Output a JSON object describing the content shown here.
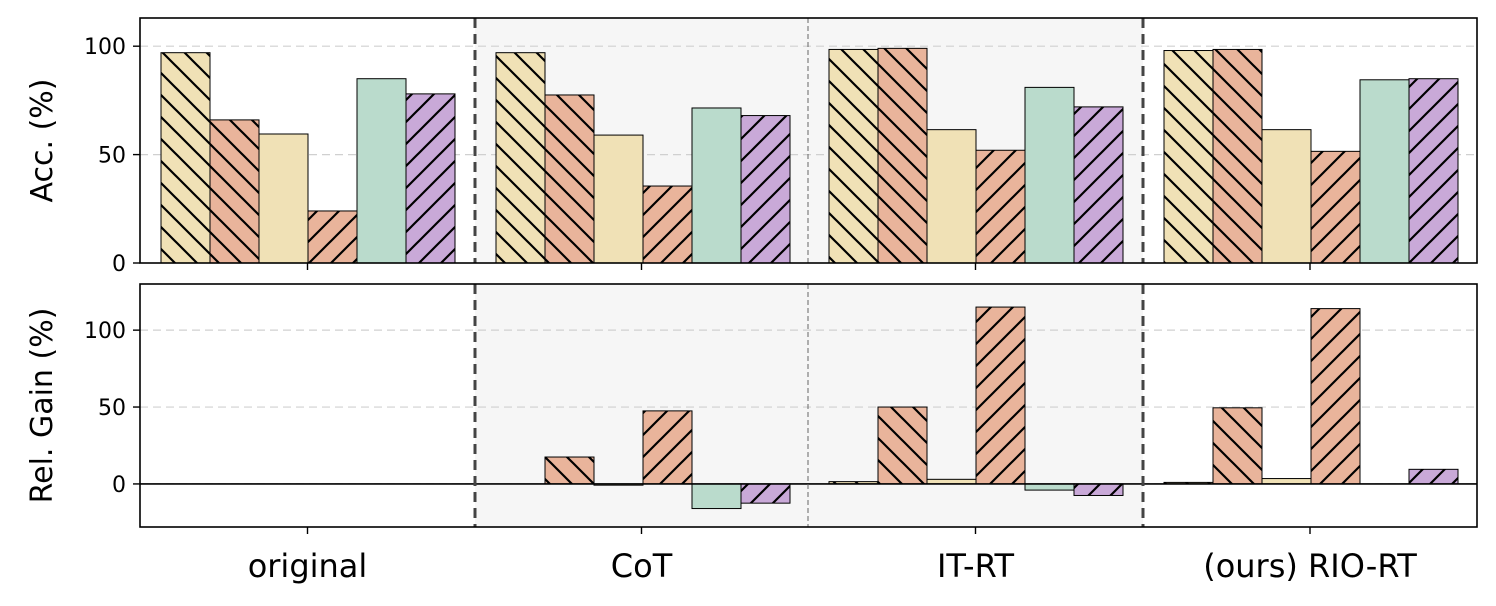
{
  "chart_data": {
    "type": "bar",
    "categories": [
      "original",
      "CoT",
      "IT-RT",
      "(ours) RIO-RT"
    ],
    "bar_styles": [
      {
        "color": "#f0e1b6",
        "hatch": "backslash"
      },
      {
        "color": "#e9b49b",
        "hatch": "backslash"
      },
      {
        "color": "#f0e1b6",
        "hatch": "none"
      },
      {
        "color": "#e9b49b",
        "hatch": "slash"
      },
      {
        "color": "#badbcc",
        "hatch": "none"
      },
      {
        "color": "#c9a9d8",
        "hatch": "slash"
      }
    ],
    "panels": [
      {
        "ylabel": "Acc. (%)",
        "ylim": [
          0,
          113
        ],
        "yticks": [
          0,
          50,
          100
        ],
        "grid": true,
        "values": [
          [
            97,
            66,
            59.5,
            24,
            85,
            78
          ],
          [
            97,
            77.5,
            59,
            35.5,
            71.5,
            68
          ],
          [
            98.5,
            99,
            61.5,
            52,
            81,
            72
          ],
          [
            98,
            98.5,
            61.5,
            51.5,
            84.5,
            85
          ]
        ]
      },
      {
        "ylabel": "Rel. Gain (%)",
        "ylim": [
          -28,
          130
        ],
        "yticks": [
          0,
          50,
          100
        ],
        "grid": true,
        "zero_line": true,
        "values": [
          [
            0,
            0,
            0,
            0,
            0,
            0
          ],
          [
            0,
            17.5,
            -0.8,
            47.5,
            -16,
            -12.5
          ],
          [
            1.5,
            50,
            3,
            115,
            -4,
            -7.5
          ],
          [
            1,
            49.5,
            3.5,
            114,
            0,
            9.5
          ]
        ]
      }
    ]
  }
}
